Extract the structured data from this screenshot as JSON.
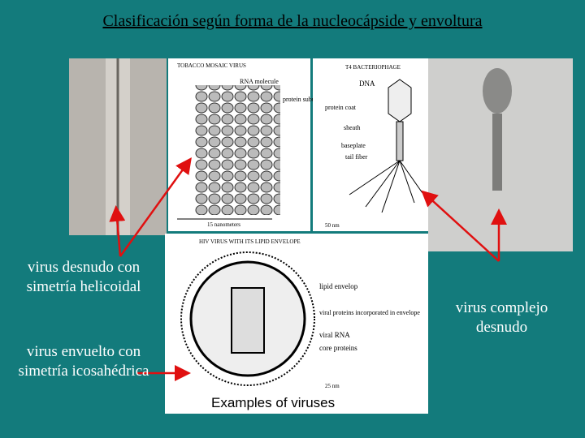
{
  "title": "Clasificación según forma de la nucleocápside y envoltura",
  "labels": {
    "helical": "virus desnudo con simetría helicoidal",
    "enveloped": "virus envuelto con simetría icosahédrica",
    "complex": "virus complejo desnudo"
  },
  "tmv": {
    "title": "TOBACCO MOSAIC VIRUS",
    "rna": "RNA molecule",
    "protein": "protein subunit of coat",
    "scale": "15 nanometers"
  },
  "t4": {
    "title": "T4 BACTERIOPHAGE",
    "dna": "DNA",
    "coat": "protein coat",
    "sheath": "sheath",
    "baseplate": "baseplate",
    "fiber": "tail fiber",
    "scale": "50 nm"
  },
  "hiv": {
    "title": "HIV VIRUS WITH ITS LIPID ENVELOPE",
    "envelope": "lipid envelop",
    "proteins": "viral proteins incorporated in envelope",
    "rna": "viral RNA",
    "core": "core proteins",
    "scale": "25 nm",
    "caption": "Examples of viruses"
  }
}
